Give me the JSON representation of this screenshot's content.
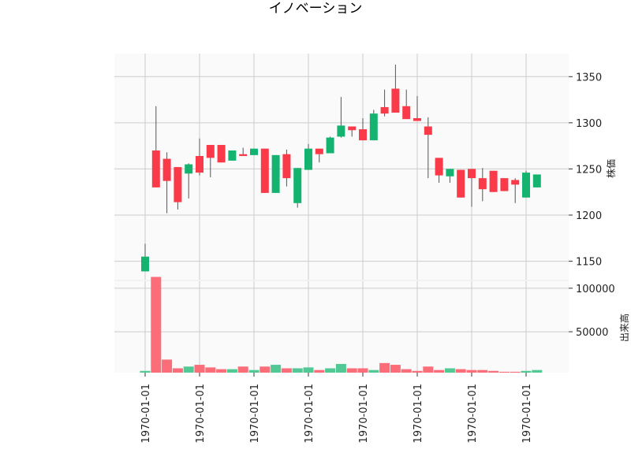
{
  "chart_data": {
    "type": "candlestick",
    "title": "イノベーション",
    "x_tick_labels": [
      "1970-01-01",
      "1970-01-01",
      "1970-01-01",
      "1970-01-01",
      "1970-01-01",
      "1970-01-01",
      "1970-01-01",
      "1970-01-01"
    ],
    "x_tick_indices": [
      0,
      5,
      10,
      15,
      20,
      25,
      30,
      35
    ],
    "price_axis": {
      "label": "株価",
      "ylim": [
        1130,
        1375
      ],
      "ticks": [
        1150,
        1200,
        1250,
        1300,
        1350
      ]
    },
    "volume_axis": {
      "label": "出来高",
      "ylim": [
        3000,
        108000
      ],
      "ticks": [
        50000,
        100000
      ]
    },
    "colors": {
      "up": "#14b36f",
      "down": "#fa3a48",
      "up_volume": "#52c895",
      "down_volume": "#fb6d78",
      "grid": "#cccccc",
      "panel_bg": "#fafafa"
    },
    "grid": true,
    "candles": [
      {
        "open": 1139,
        "high": 1169,
        "low": 1139,
        "close": 1155,
        "volume": 5000
      },
      {
        "open": 1270,
        "high": 1318,
        "low": 1230,
        "close": 1230,
        "volume": 113000
      },
      {
        "open": 1261,
        "high": 1268,
        "low": 1202,
        "close": 1237,
        "volume": 18000
      },
      {
        "open": 1252,
        "high": 1252,
        "low": 1206,
        "close": 1214,
        "volume": 8000
      },
      {
        "open": 1245,
        "high": 1256,
        "low": 1218,
        "close": 1255,
        "volume": 10000
      },
      {
        "open": 1264,
        "high": 1283,
        "low": 1243,
        "close": 1246,
        "volume": 12000
      },
      {
        "open": 1276,
        "high": 1276,
        "low": 1241,
        "close": 1262,
        "volume": 9000
      },
      {
        "open": 1276,
        "high": 1276,
        "low": 1257,
        "close": 1257,
        "volume": 7000
      },
      {
        "open": 1259,
        "high": 1270,
        "low": 1259,
        "close": 1270,
        "volume": 7000
      },
      {
        "open": 1266,
        "high": 1273,
        "low": 1264,
        "close": 1264,
        "volume": 10000
      },
      {
        "open": 1265,
        "high": 1272,
        "low": 1265,
        "close": 1272,
        "volume": 6000
      },
      {
        "open": 1272,
        "high": 1272,
        "low": 1224,
        "close": 1224,
        "volume": 10000
      },
      {
        "open": 1224,
        "high": 1265,
        "low": 1224,
        "close": 1265,
        "volume": 12000
      },
      {
        "open": 1266,
        "high": 1271,
        "low": 1231,
        "close": 1240,
        "volume": 8000
      },
      {
        "open": 1213,
        "high": 1251,
        "low": 1208,
        "close": 1251,
        "volume": 8000
      },
      {
        "open": 1249,
        "high": 1277,
        "low": 1249,
        "close": 1272,
        "volume": 9000
      },
      {
        "open": 1272,
        "high": 1272,
        "low": 1257,
        "close": 1266,
        "volume": 6000
      },
      {
        "open": 1267,
        "high": 1285,
        "low": 1267,
        "close": 1284,
        "volume": 8000
      },
      {
        "open": 1285,
        "high": 1328,
        "low": 1284,
        "close": 1297,
        "volume": 13000
      },
      {
        "open": 1296,
        "high": 1296,
        "low": 1285,
        "close": 1292,
        "volume": 8000
      },
      {
        "open": 1293,
        "high": 1305,
        "low": 1281,
        "close": 1281,
        "volume": 8000
      },
      {
        "open": 1281,
        "high": 1314,
        "low": 1281,
        "close": 1310,
        "volume": 6000
      },
      {
        "open": 1317,
        "high": 1336,
        "low": 1307,
        "close": 1310,
        "volume": 14000
      },
      {
        "open": 1337,
        "high": 1363,
        "low": 1311,
        "close": 1311,
        "volume": 12000
      },
      {
        "open": 1318,
        "high": 1336,
        "low": 1304,
        "close": 1304,
        "volume": 7000
      },
      {
        "open": 1305,
        "high": 1329,
        "low": 1302,
        "close": 1302,
        "volume": 5000
      },
      {
        "open": 1296,
        "high": 1306,
        "low": 1240,
        "close": 1287,
        "volume": 10000
      },
      {
        "open": 1262,
        "high": 1262,
        "low": 1235,
        "close": 1243,
        "volume": 6000
      },
      {
        "open": 1242,
        "high": 1250,
        "low": 1235,
        "close": 1250,
        "volume": 8000
      },
      {
        "open": 1249,
        "high": 1249,
        "low": 1219,
        "close": 1219,
        "volume": 7000
      },
      {
        "open": 1250,
        "high": 1250,
        "low": 1209,
        "close": 1240,
        "volume": 6000
      },
      {
        "open": 1240,
        "high": 1251,
        "low": 1215,
        "close": 1228,
        "volume": 6000
      },
      {
        "open": 1248,
        "high": 1248,
        "low": 1225,
        "close": 1225,
        "volume": 5000
      },
      {
        "open": 1240,
        "high": 1240,
        "low": 1226,
        "close": 1226,
        "volume": 4000
      },
      {
        "open": 1238,
        "high": 1240,
        "low": 1213,
        "close": 1233,
        "volume": 4000
      },
      {
        "open": 1219,
        "high": 1248,
        "low": 1219,
        "close": 1246,
        "volume": 5000
      },
      {
        "open": 1230,
        "high": 1244,
        "low": 1230,
        "close": 1244,
        "volume": 6000
      }
    ]
  }
}
